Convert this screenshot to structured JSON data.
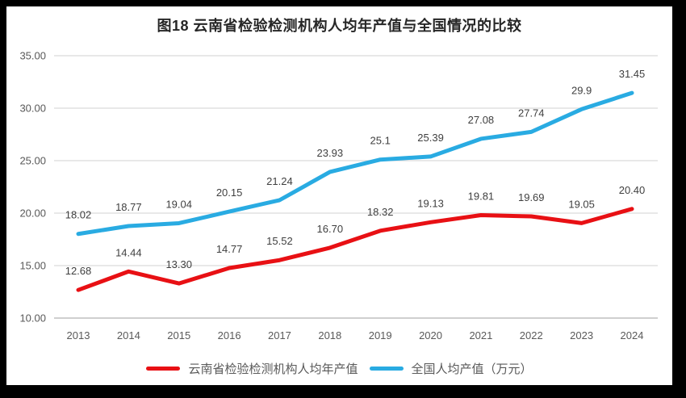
{
  "chart_data": {
    "type": "line",
    "title": "图18 云南省检验检测机构人均年产值与全国情况的比较",
    "categories": [
      "2013",
      "2014",
      "2015",
      "2016",
      "2017",
      "2018",
      "2019",
      "2020",
      "2021",
      "2022",
      "2023",
      "2024"
    ],
    "series": [
      {
        "name": "云南省检验检测机构人均年产值",
        "color": "#e81014",
        "values": [
          12.68,
          14.44,
          13.3,
          14.77,
          15.52,
          16.7,
          18.32,
          19.13,
          19.81,
          19.69,
          19.05,
          20.4
        ],
        "labels": [
          "12.68",
          "14.44",
          "13.30",
          "14.77",
          "15.52",
          "16.70",
          "18.32",
          "19.13",
          "19.81",
          "19.69",
          "19.05",
          "20.40"
        ]
      },
      {
        "name": "全国人均产值（万元）",
        "color": "#29abe2",
        "values": [
          18.02,
          18.77,
          19.04,
          20.15,
          21.24,
          23.93,
          25.1,
          25.39,
          27.08,
          27.74,
          29.9,
          31.45
        ],
        "labels": [
          "18.02",
          "18.77",
          "19.04",
          "20.15",
          "21.24",
          "23.93",
          "25.1",
          "25.39",
          "27.08",
          "27.74",
          "29.9",
          "31.45"
        ]
      }
    ],
    "ylim": [
      10,
      35
    ],
    "yticks": [
      "10.00",
      "15.00",
      "20.00",
      "25.00",
      "30.00",
      "35.00"
    ],
    "grid": true,
    "gridline_color": "#d9d9d9",
    "axis_line_color": "#bfbfbf",
    "legend_position": "bottom"
  }
}
